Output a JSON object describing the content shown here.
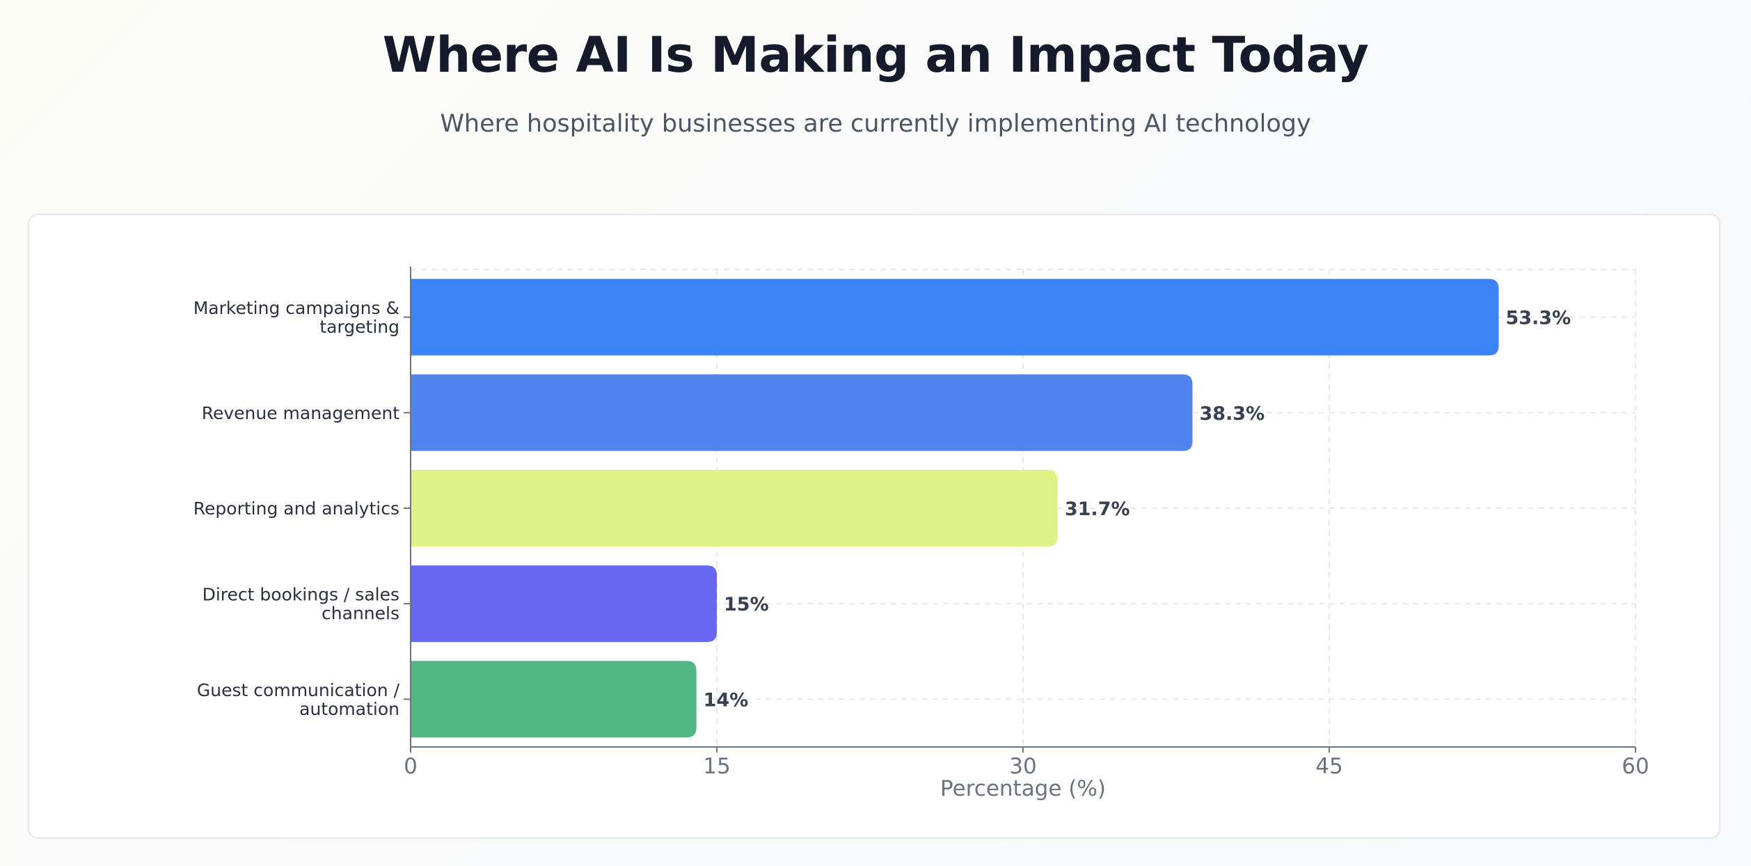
{
  "page": {
    "title": "Where AI Is Making an Impact Today",
    "subtitle": "Where hospitality businesses are currently implementing AI technology"
  },
  "colors": {
    "axis": "#6b7280",
    "grid": "#e5e7eb",
    "label": "#2b3140",
    "value_label": "#374151",
    "tick": "#6b7280"
  },
  "chart_data": {
    "type": "bar",
    "orientation": "horizontal",
    "title": "",
    "xlabel": "Percentage (%)",
    "ylabel": "",
    "xlim": [
      0,
      60
    ],
    "xticks": [
      0,
      15,
      30,
      45,
      60
    ],
    "grid": true,
    "categories": [
      [
        "Marketing campaigns &",
        "targeting"
      ],
      [
        "Revenue management"
      ],
      [
        "Reporting and analytics"
      ],
      [
        "Direct bookings / sales",
        "channels"
      ],
      [
        "Guest communication /",
        "automation"
      ]
    ],
    "values": [
      53.3,
      38.3,
      31.7,
      15,
      14
    ],
    "value_labels": [
      "53.3%",
      "38.3%",
      "31.7%",
      "15%",
      "14%"
    ],
    "bar_colors": [
      "#3b82f6",
      "#5083ec",
      "#dff28a",
      "#6867f3",
      "#53b784"
    ]
  }
}
